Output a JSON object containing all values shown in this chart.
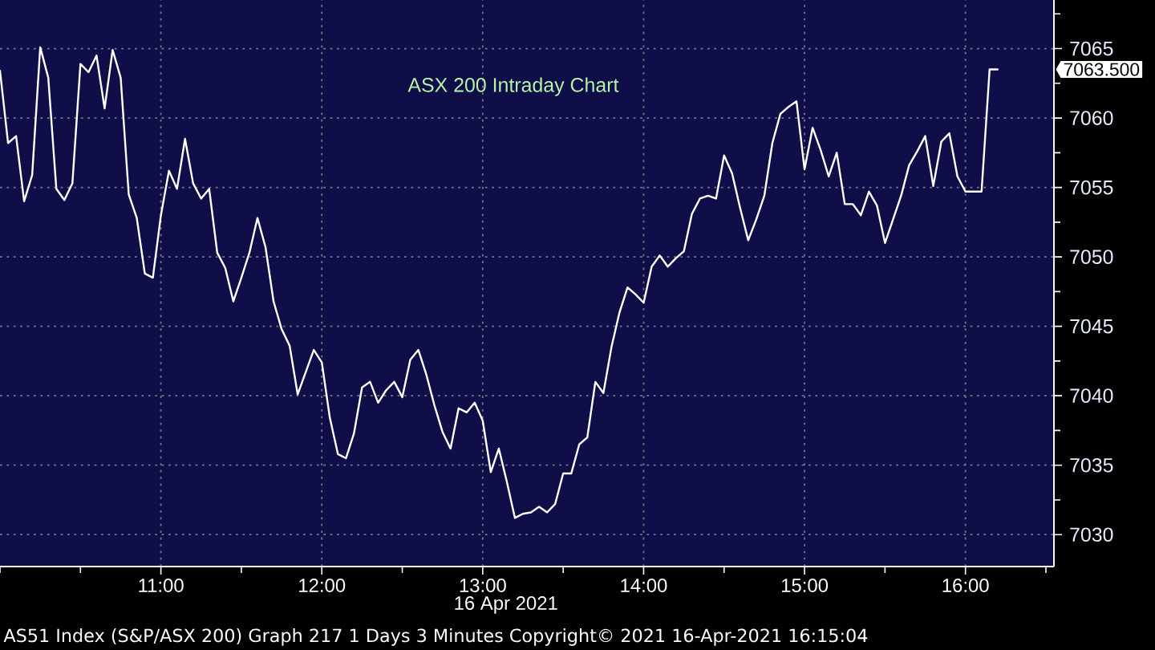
{
  "chart_data": {
    "type": "line",
    "title": "ASX 200 Intraday Chart",
    "xlabel": "16 Apr 2021",
    "color": "#ffffff",
    "line_style": "solid",
    "marker": "none",
    "grid": true,
    "x": [
      10,
      10.05,
      10.1,
      10.15,
      10.2,
      10.25,
      10.3,
      10.35,
      10.4,
      10.45,
      10.5,
      10.55,
      10.6,
      10.65,
      10.7,
      10.75,
      10.8,
      10.85,
      10.9,
      10.95,
      11,
      11.05,
      11.1,
      11.15,
      11.2,
      11.25,
      11.3,
      11.35,
      11.4,
      11.45,
      11.5,
      11.55,
      11.6,
      11.65,
      11.7,
      11.75,
      11.8,
      11.85,
      11.9,
      11.95,
      12,
      12.05,
      12.1,
      12.15,
      12.2,
      12.25,
      12.3,
      12.35,
      12.4,
      12.45,
      12.5,
      12.55,
      12.6,
      12.65,
      12.7,
      12.75,
      12.8,
      12.85,
      12.9,
      12.95,
      13,
      13.05,
      13.1,
      13.15,
      13.2,
      13.25,
      13.3,
      13.35,
      13.4,
      13.45,
      13.5,
      13.55,
      13.6,
      13.65,
      13.7,
      13.75,
      13.8,
      13.85,
      13.9,
      13.95,
      14,
      14.05,
      14.1,
      14.15,
      14.2,
      14.25,
      14.3,
      14.35,
      14.4,
      14.45,
      14.5,
      14.55,
      14.6,
      14.65,
      14.7,
      14.75,
      14.8,
      14.85,
      14.9,
      14.95,
      15,
      15.05,
      15.1,
      15.15,
      15.2,
      15.25,
      15.3,
      15.35,
      15.4,
      15.45,
      15.5,
      15.55,
      15.6,
      15.65,
      15.7,
      15.75,
      15.8,
      15.85,
      15.9,
      15.95,
      16,
      16.05,
      16.1,
      16.15,
      16.2
    ],
    "values": [
      7063.4,
      7058.2,
      7058.7,
      7054.0,
      7055.9,
      7065.1,
      7062.9,
      7054.9,
      7054.1,
      7055.3,
      7063.9,
      7063.3,
      7064.5,
      7060.7,
      7064.9,
      7062.9,
      7054.5,
      7052.8,
      7048.8,
      7048.5,
      7053.0,
      7056.2,
      7054.9,
      7058.5,
      7055.3,
      7054.2,
      7054.9,
      7050.3,
      7049.2,
      7046.8,
      7048.5,
      7050.3,
      7052.8,
      7050.7,
      7046.8,
      7044.8,
      7043.6,
      7040.1,
      7041.7,
      7043.3,
      7042.4,
      7038.4,
      7035.8,
      7035.5,
      7037.3,
      7040.6,
      7041.0,
      7039.5,
      7040.4,
      7041.0,
      7039.9,
      7042.6,
      7043.3,
      7041.5,
      7039.3,
      7037.4,
      7036.2,
      7039.1,
      7038.8,
      7039.5,
      7038.2,
      7034.5,
      7036.2,
      7033.8,
      7031.2,
      7031.5,
      7031.6,
      7032.0,
      7031.6,
      7032.2,
      7034.4,
      7034.4,
      7036.5,
      7037.0,
      7041.0,
      7040.2,
      7043.5,
      7046.0,
      7047.8,
      7047.3,
      7046.7,
      7049.3,
      7050.1,
      7049.3,
      7049.9,
      7050.4,
      7053.1,
      7054.2,
      7054.4,
      7054.2,
      7057.3,
      7056.0,
      7053.5,
      7051.2,
      7052.7,
      7054.4,
      7058.2,
      7060.3,
      7060.8,
      7061.2,
      7056.3,
      7059.3,
      7057.7,
      7055.8,
      7057.5,
      7053.8,
      7053.8,
      7053.0,
      7054.7,
      7053.7,
      7051.0,
      7052.7,
      7054.4,
      7056.6,
      7057.6,
      7058.7,
      7055.1,
      7058.3,
      7058.9,
      7055.8,
      7054.7,
      7054.7,
      7054.7,
      7063.5,
      7063.5
    ],
    "xlim": [
      10,
      16.55
    ],
    "ylim": [
      7027.7,
      7068.5
    ],
    "xticks": [
      {
        "value": 10,
        "label": null
      },
      {
        "value": 10.5,
        "label": null
      },
      {
        "value": 11,
        "label": "11:00"
      },
      {
        "value": 11.5,
        "label": null
      },
      {
        "value": 12,
        "label": "12:00"
      },
      {
        "value": 12.5,
        "label": null
      },
      {
        "value": 13,
        "label": "13:00"
      },
      {
        "value": 13.5,
        "label": null
      },
      {
        "value": 14,
        "label": "14:00"
      },
      {
        "value": 14.5,
        "label": null
      },
      {
        "value": 15,
        "label": "15:00"
      },
      {
        "value": 15.5,
        "label": null
      },
      {
        "value": 16,
        "label": "16:00"
      },
      {
        "value": 16.5,
        "label": null
      }
    ],
    "yticks": [
      7030,
      {
        "value": 7032.5,
        "label": null
      },
      7035,
      {
        "value": 7037.5,
        "label": null
      },
      7040,
      {
        "value": 7042.5,
        "label": null
      },
      7045,
      {
        "value": 7047.5,
        "label": null
      },
      7050,
      {
        "value": 7052.5,
        "label": null
      },
      7055,
      {
        "value": 7057.5,
        "label": null
      },
      7060,
      {
        "value": 7062.5,
        "label": null
      },
      7065,
      {
        "value": 7067.5,
        "label": null
      }
    ],
    "annotations": [
      "7063.500",
      "AS51 Index (S&P/ASX 200) Graph 217 1 Days 3 Minutes Copyright© 2021 16-Apr-2021 16:15:04"
    ]
  }
}
